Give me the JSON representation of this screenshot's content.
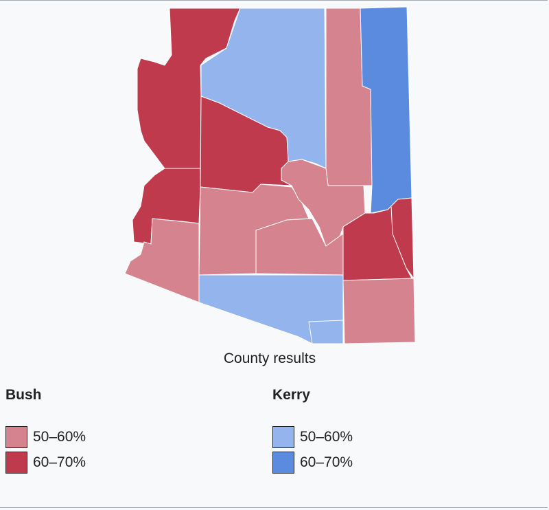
{
  "caption": "County results",
  "legend": [
    {
      "title": "Bush",
      "items": [
        {
          "label": "50–60%",
          "color": "#d5838f"
        },
        {
          "label": "60–70%",
          "color": "#bf3a4d"
        }
      ]
    },
    {
      "title": "Kerry",
      "items": [
        {
          "label": "50–60%",
          "color": "#93b4ec"
        },
        {
          "label": "60–70%",
          "color": "#5a8bde"
        }
      ]
    }
  ]
}
